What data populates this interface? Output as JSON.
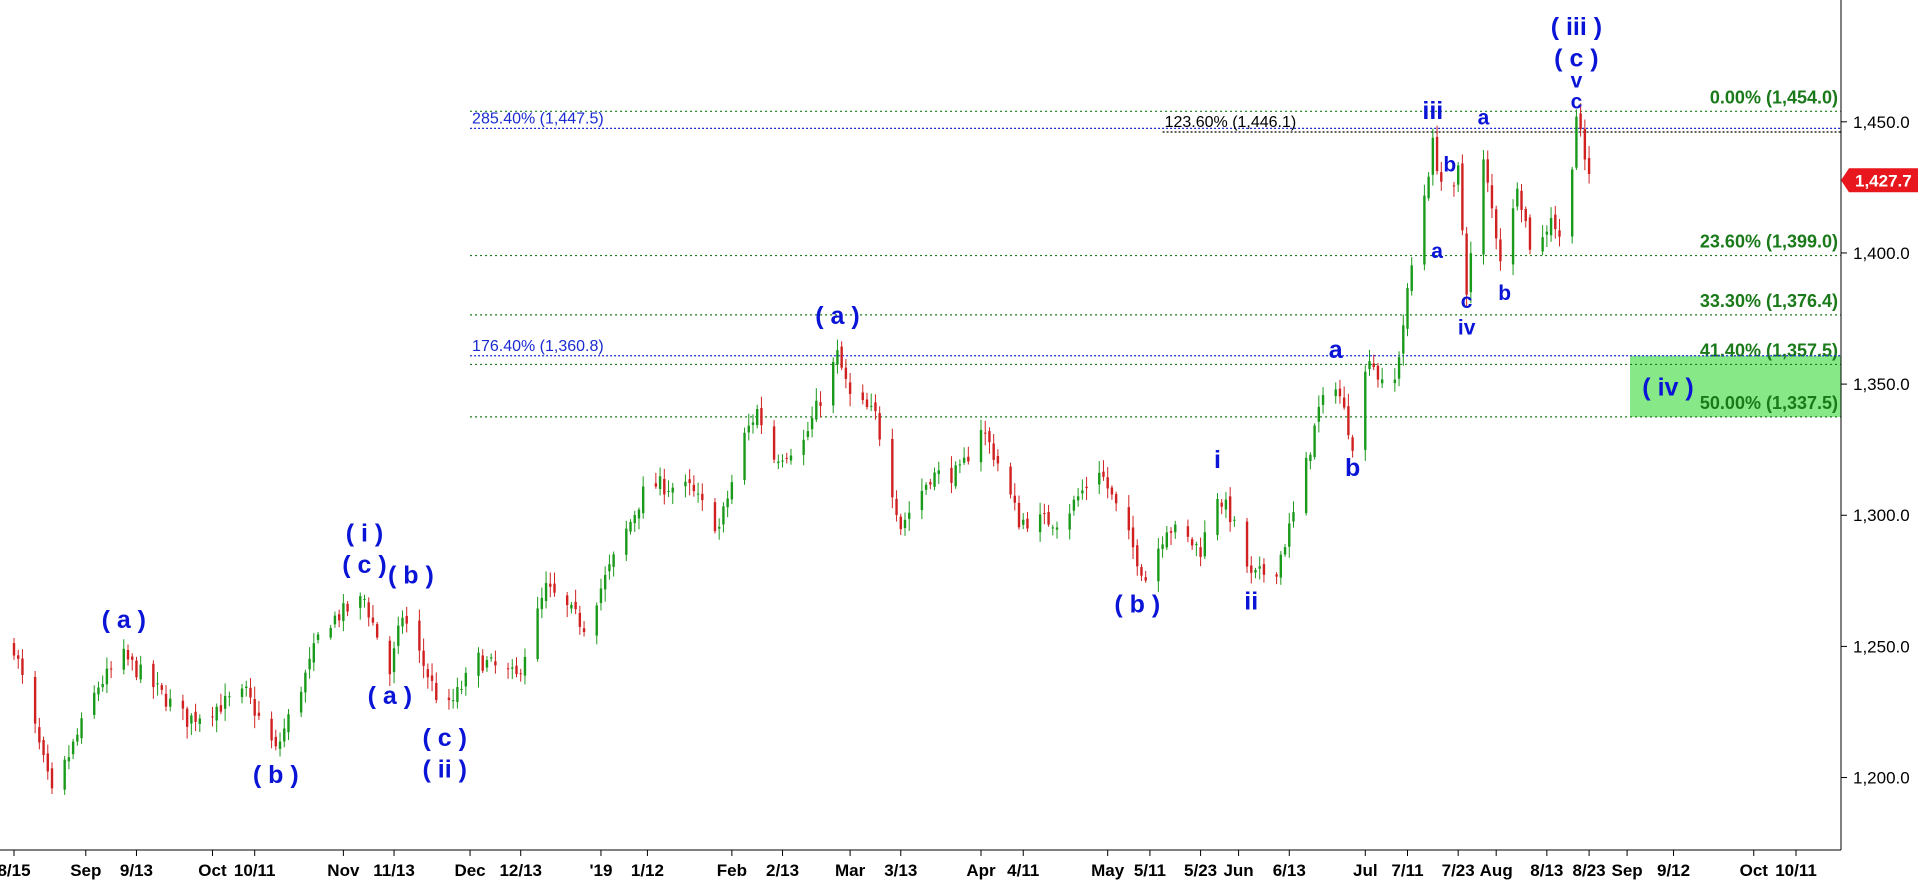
{
  "chart_data": {
    "type": "candlestick",
    "period": "daily",
    "y_axis": {
      "side": "right",
      "ylim": [
        1180,
        1485
      ],
      "ticks": [
        1200,
        1250,
        1300,
        1350,
        1400,
        1450
      ],
      "tick_labels": [
        "1,200.0",
        "1,250.0",
        "1,300.0",
        "1,350.0",
        "1,400.0",
        "1,450.0"
      ]
    },
    "x_axis": {
      "start": "2018-08-15",
      "end": "2019-10-20",
      "ticks": [
        {
          "date": "2018-08-15",
          "label": "8/15"
        },
        {
          "date": "2018-09-01",
          "label": "Sep"
        },
        {
          "date": "2018-09-13",
          "label": "9/13"
        },
        {
          "date": "2018-10-01",
          "label": "Oct"
        },
        {
          "date": "2018-10-11",
          "label": "10/11"
        },
        {
          "date": "2018-11-01",
          "label": "Nov"
        },
        {
          "date": "2018-11-13",
          "label": "11/13"
        },
        {
          "date": "2018-12-01",
          "label": "Dec"
        },
        {
          "date": "2018-12-13",
          "label": "12/13"
        },
        {
          "date": "2019-01-01",
          "label": "'19"
        },
        {
          "date": "2019-01-12",
          "label": "1/12"
        },
        {
          "date": "2019-02-01",
          "label": "Feb"
        },
        {
          "date": "2019-02-13",
          "label": "2/13"
        },
        {
          "date": "2019-03-01",
          "label": "Mar"
        },
        {
          "date": "2019-03-13",
          "label": "3/13"
        },
        {
          "date": "2019-04-01",
          "label": "Apr"
        },
        {
          "date": "2019-04-11",
          "label": "4/11"
        },
        {
          "date": "2019-05-01",
          "label": "May"
        },
        {
          "date": "2019-05-11",
          "label": "5/11"
        },
        {
          "date": "2019-05-23",
          "label": "5/23"
        },
        {
          "date": "2019-06-01",
          "label": "Jun"
        },
        {
          "date": "2019-06-13",
          "label": "6/13"
        },
        {
          "date": "2019-07-01",
          "label": "Jul"
        },
        {
          "date": "2019-07-11",
          "label": "7/11"
        },
        {
          "date": "2019-07-23",
          "label": "7/23"
        },
        {
          "date": "2019-08-01",
          "label": "Aug"
        },
        {
          "date": "2019-08-13",
          "label": "8/13"
        },
        {
          "date": "2019-08-23",
          "label": "8/23"
        },
        {
          "date": "2019-09-01",
          "label": "Sep"
        },
        {
          "date": "2019-09-12",
          "label": "9/12"
        },
        {
          "date": "2019-10-01",
          "label": "Oct"
        },
        {
          "date": "2019-10-11",
          "label": "10/11"
        }
      ]
    },
    "close_path": [
      [
        "2018-08-15",
        1250
      ],
      [
        "2018-08-24",
        1193
      ],
      [
        "2018-09-04",
        1235
      ],
      [
        "2018-09-10",
        1246
      ],
      [
        "2018-09-25",
        1222
      ],
      [
        "2018-10-09",
        1232
      ],
      [
        "2018-10-16",
        1210
      ],
      [
        "2018-10-24",
        1243
      ],
      [
        "2018-10-27",
        1258
      ],
      [
        "2018-11-06",
        1268
      ],
      [
        "2018-11-12",
        1240
      ],
      [
        "2018-11-15",
        1262
      ],
      [
        "2018-11-25",
        1224
      ],
      [
        "2018-12-03",
        1245
      ],
      [
        "2018-12-12",
        1238
      ],
      [
        "2018-12-19",
        1272
      ],
      [
        "2018-12-28",
        1258
      ],
      [
        "2019-01-04",
        1283
      ],
      [
        "2019-01-12",
        1312
      ],
      [
        "2019-01-22",
        1310
      ],
      [
        "2019-01-29",
        1295
      ],
      [
        "2019-02-04",
        1330
      ],
      [
        "2019-02-07",
        1340
      ],
      [
        "2019-02-11",
        1322
      ],
      [
        "2019-02-18",
        1328
      ],
      [
        "2019-02-26",
        1361
      ],
      [
        "2019-03-01",
        1345
      ],
      [
        "2019-03-07",
        1338
      ],
      [
        "2019-03-13",
        1296
      ],
      [
        "2019-03-20",
        1315
      ],
      [
        "2019-03-27",
        1316
      ],
      [
        "2019-04-01",
        1334
      ],
      [
        "2019-04-05",
        1320
      ],
      [
        "2019-04-10",
        1298
      ],
      [
        "2019-04-20",
        1298
      ],
      [
        "2019-04-29",
        1318
      ],
      [
        "2019-05-10",
        1276
      ],
      [
        "2019-05-15",
        1296
      ],
      [
        "2019-05-23",
        1287
      ],
      [
        "2019-05-27",
        1308
      ],
      [
        "2019-05-30",
        1300
      ],
      [
        "2019-06-04",
        1276
      ],
      [
        "2019-06-10",
        1280
      ],
      [
        "2019-06-15",
        1305
      ],
      [
        "2019-06-20",
        1340
      ],
      [
        "2019-06-24",
        1351
      ],
      [
        "2019-06-28",
        1328
      ],
      [
        "2019-07-02",
        1362
      ],
      [
        "2019-07-07",
        1340
      ],
      [
        "2019-07-12",
        1395
      ],
      [
        "2019-07-17",
        1441
      ],
      [
        "2019-07-21",
        1414
      ],
      [
        "2019-07-23",
        1431
      ],
      [
        "2019-07-25",
        1387
      ],
      [
        "2019-07-29",
        1434
      ],
      [
        "2019-08-03",
        1390
      ],
      [
        "2019-08-06",
        1428
      ],
      [
        "2019-08-10",
        1395
      ],
      [
        "2019-08-14",
        1415
      ],
      [
        "2019-08-17",
        1400
      ],
      [
        "2019-08-20",
        1453
      ],
      [
        "2019-08-22",
        1435
      ],
      [
        "2019-08-24",
        1427.7
      ]
    ],
    "last_price": "1,427.7",
    "fib_levels": [
      {
        "value": 1454.0,
        "label": "0.00% (1,454.0)",
        "color": "#1a7a1a"
      },
      {
        "value": 1399.0,
        "label": "23.60% (1,399.0)",
        "color": "#1a7a1a"
      },
      {
        "value": 1376.4,
        "label": "33.30% (1,376.4)",
        "color": "#1a7a1a"
      },
      {
        "value": 1357.5,
        "label": "41.40% (1,357.5)",
        "color": "#1a7a1a"
      },
      {
        "value": 1337.5,
        "label": "50.00% (1,337.5)",
        "color": "#1a7a1a"
      }
    ],
    "extension_levels": [
      {
        "value": 1447.5,
        "label": "285.40% (1,447.5)",
        "color": "#1a2bd0",
        "start": "2018-12-01"
      },
      {
        "value": 1360.8,
        "label": "176.40% (1,360.8)",
        "color": "#1a2bd0",
        "start": "2018-12-01"
      },
      {
        "value": 1446.1,
        "label": "123.60% (1,446.1)",
        "color": "#000000",
        "start": "2019-05-14"
      }
    ],
    "target_zone": {
      "label": "( iv )",
      "top": 1360.8,
      "bottom": 1337.5,
      "color": "#86e886"
    },
    "wave_labels": [
      {
        "text": "( a )",
        "date": "2018-09-10",
        "value": 1257,
        "size": "large"
      },
      {
        "text": "( b )",
        "date": "2018-10-16",
        "value": 1198,
        "size": "large"
      },
      {
        "text": "( i )",
        "date": "2018-11-06",
        "value": 1290,
        "size": "large"
      },
      {
        "text": "( c )",
        "date": "2018-11-06",
        "value": 1278,
        "size": "large"
      },
      {
        "text": "( a )",
        "date": "2018-11-12",
        "value": 1228,
        "size": "large"
      },
      {
        "text": "( b )",
        "date": "2018-11-17",
        "value": 1274,
        "size": "large"
      },
      {
        "text": "( c )",
        "date": "2018-11-25",
        "value": 1212,
        "size": "large"
      },
      {
        "text": "( ii )",
        "date": "2018-11-25",
        "value": 1200,
        "size": "large"
      },
      {
        "text": "( a )",
        "date": "2019-02-26",
        "value": 1373,
        "size": "large"
      },
      {
        "text": "( b )",
        "date": "2019-05-08",
        "value": 1263,
        "size": "large"
      },
      {
        "text": "i",
        "date": "2019-05-27",
        "value": 1318,
        "size": "large"
      },
      {
        "text": "ii",
        "date": "2019-06-04",
        "value": 1264,
        "size": "large"
      },
      {
        "text": "a",
        "date": "2019-06-24",
        "value": 1360,
        "size": "large"
      },
      {
        "text": "b",
        "date": "2019-06-28",
        "value": 1315,
        "size": "large"
      },
      {
        "text": "iii",
        "date": "2019-07-17",
        "value": 1451,
        "size": "large"
      },
      {
        "text": "a",
        "date": "2019-07-18",
        "value": 1398,
        "size": "small"
      },
      {
        "text": "b",
        "date": "2019-07-21",
        "value": 1431,
        "size": "small"
      },
      {
        "text": "c",
        "date": "2019-07-25",
        "value": 1379,
        "size": "small"
      },
      {
        "text": "iv",
        "date": "2019-07-25",
        "value": 1369,
        "size": "small"
      },
      {
        "text": "a",
        "date": "2019-07-29",
        "value": 1449,
        "size": "small"
      },
      {
        "text": "b",
        "date": "2019-08-03",
        "value": 1382,
        "size": "small"
      },
      {
        "text": "( iii )",
        "date": "2019-08-20",
        "value": 1483,
        "size": "large"
      },
      {
        "text": "( c )",
        "date": "2019-08-20",
        "value": 1471,
        "size": "large"
      },
      {
        "text": "v",
        "date": "2019-08-20",
        "value": 1463,
        "size": "small"
      },
      {
        "text": "c",
        "date": "2019-08-20",
        "value": 1455,
        "size": "small"
      }
    ],
    "grid": false,
    "colors": {
      "up": "#1a9a1a",
      "down": "#d02020",
      "last_price_bg": "#e8161d"
    }
  }
}
